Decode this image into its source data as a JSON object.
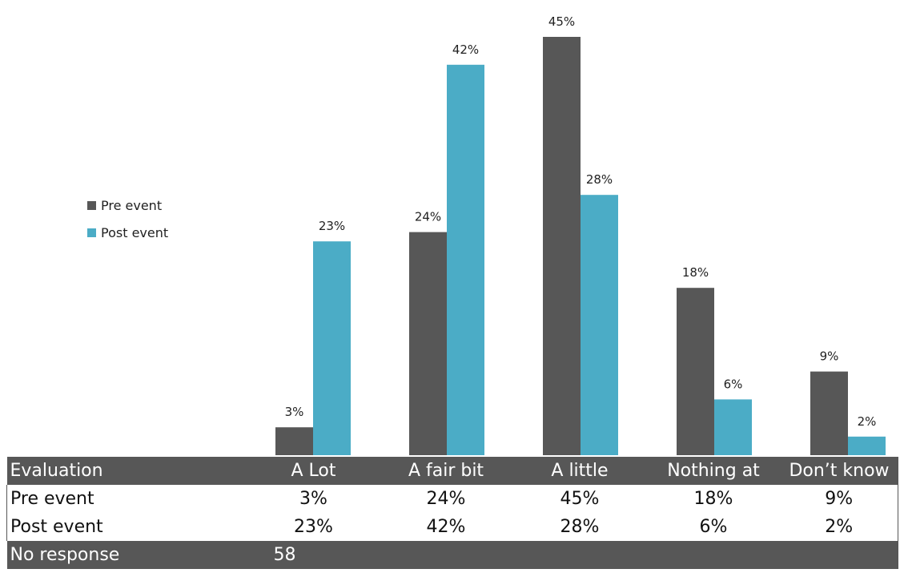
{
  "chart_data": {
    "type": "bar",
    "categories": [
      "A Lot",
      "A fair bit",
      "A little",
      "Nothing at",
      "Don’t know"
    ],
    "series": [
      {
        "name": "Pre event",
        "values": [
          3,
          24,
          45,
          18,
          9
        ],
        "color": "#575757"
      },
      {
        "name": "Post event",
        "values": [
          23,
          42,
          28,
          6,
          2
        ],
        "color": "#4bacc6"
      }
    ],
    "value_suffix": "%",
    "ylim": [
      0,
      45
    ],
    "legend": "left",
    "grid": false
  },
  "table": {
    "header_label": "Evaluation",
    "categories": [
      "A Lot",
      "A fair bit",
      "A little",
      "Nothing at",
      "Don’t know"
    ],
    "rows": [
      {
        "label": "Pre event",
        "values": [
          "3%",
          "24%",
          "45%",
          "18%",
          "9%"
        ]
      },
      {
        "label": "Post event",
        "values": [
          "23%",
          "42%",
          "28%",
          "6%",
          "2%"
        ]
      }
    ],
    "footer_label": "No response",
    "footer_value": "58"
  }
}
